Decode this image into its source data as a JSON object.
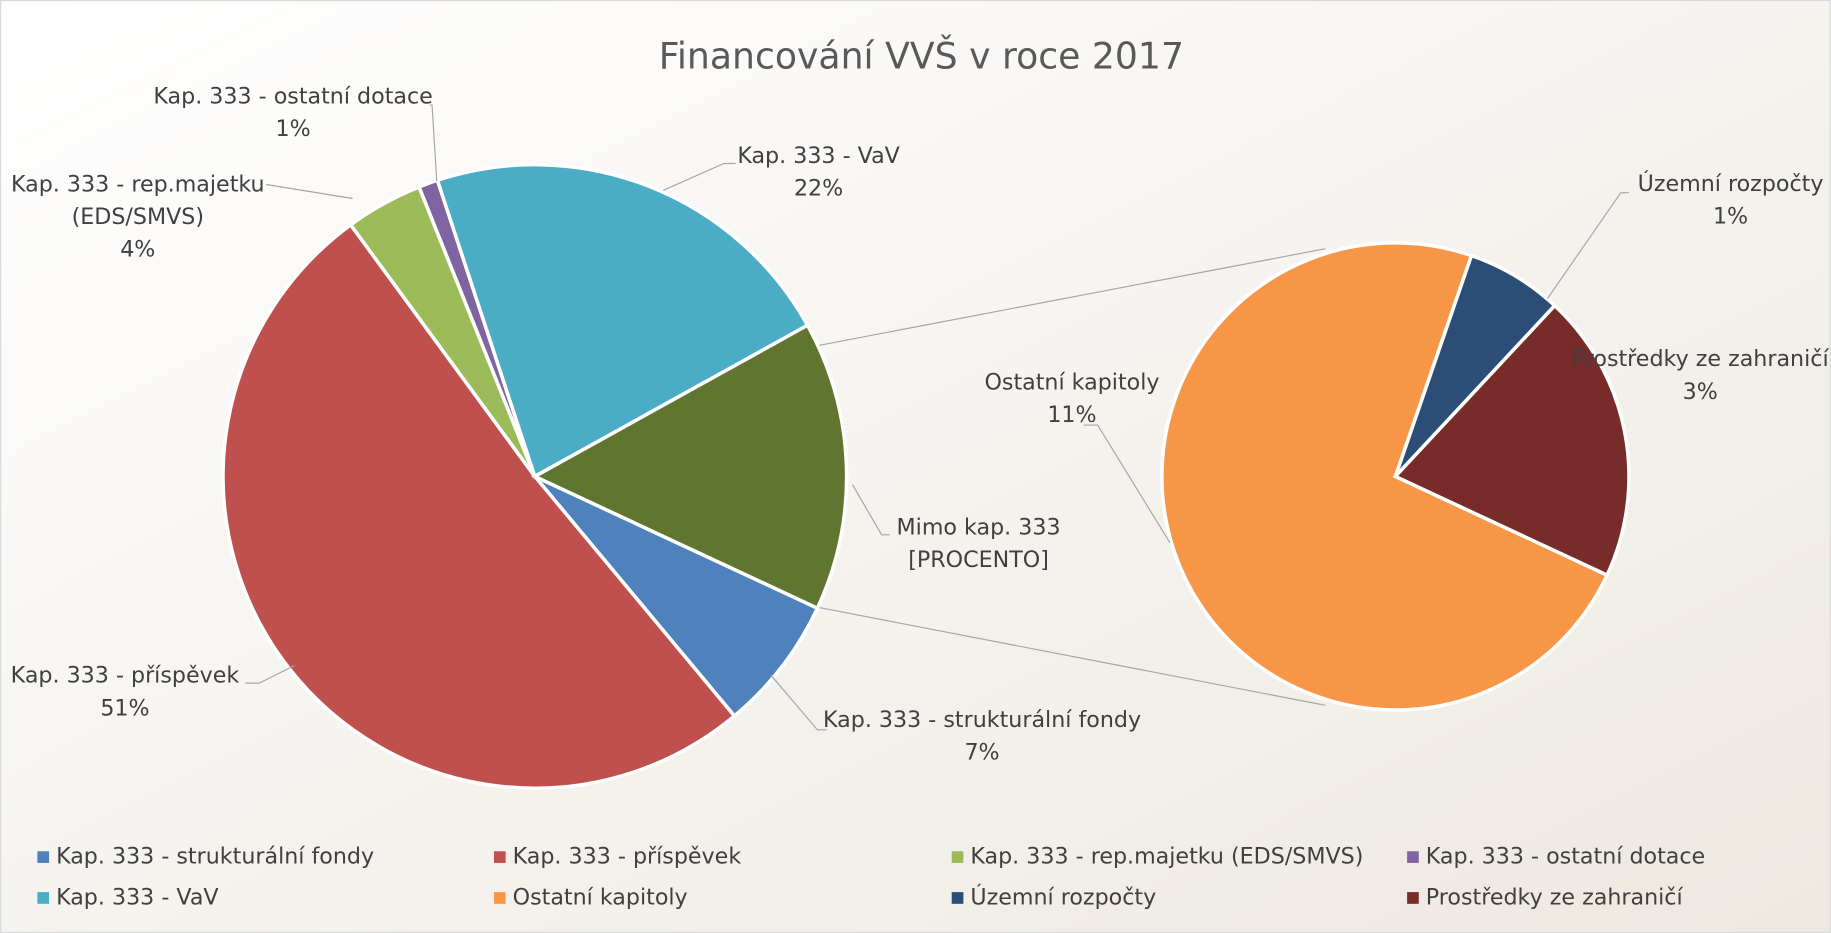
{
  "chart_data": {
    "type": "pie-of-pie",
    "title": "Financování VVŠ v roce 2017",
    "main": {
      "categories": [
        "Kap. 333 - strukturální fondy",
        "Kap. 333 - příspěvek",
        "Kap. 333 - rep.majetku (EDS/SMVS)",
        "Kap. 333 - ostatní dotace",
        "Kap. 333 - VaV"
      ],
      "values": [
        7,
        51,
        4,
        1,
        22
      ],
      "value_labels": [
        "7%",
        "51%",
        "4%",
        "1%",
        "22%"
      ],
      "colors": [
        "#4f81bd",
        "#c0504d",
        "#9bbb59",
        "#8064a2",
        "#4bacc6"
      ]
    },
    "other": {
      "label": "Mimo kap. 333",
      "value_label": "[PROCENTO]",
      "color": "#5f7530"
    },
    "secondary": {
      "categories": [
        "Ostatní kapitoly",
        "Územní rozpočty",
        "Prostředky ze zahraničí"
      ],
      "values": [
        11,
        1,
        3
      ],
      "value_labels": [
        "11%",
        "1%",
        "3%"
      ],
      "colors": [
        "#f79646",
        "#2c4d75",
        "#772c2a"
      ]
    }
  }
}
